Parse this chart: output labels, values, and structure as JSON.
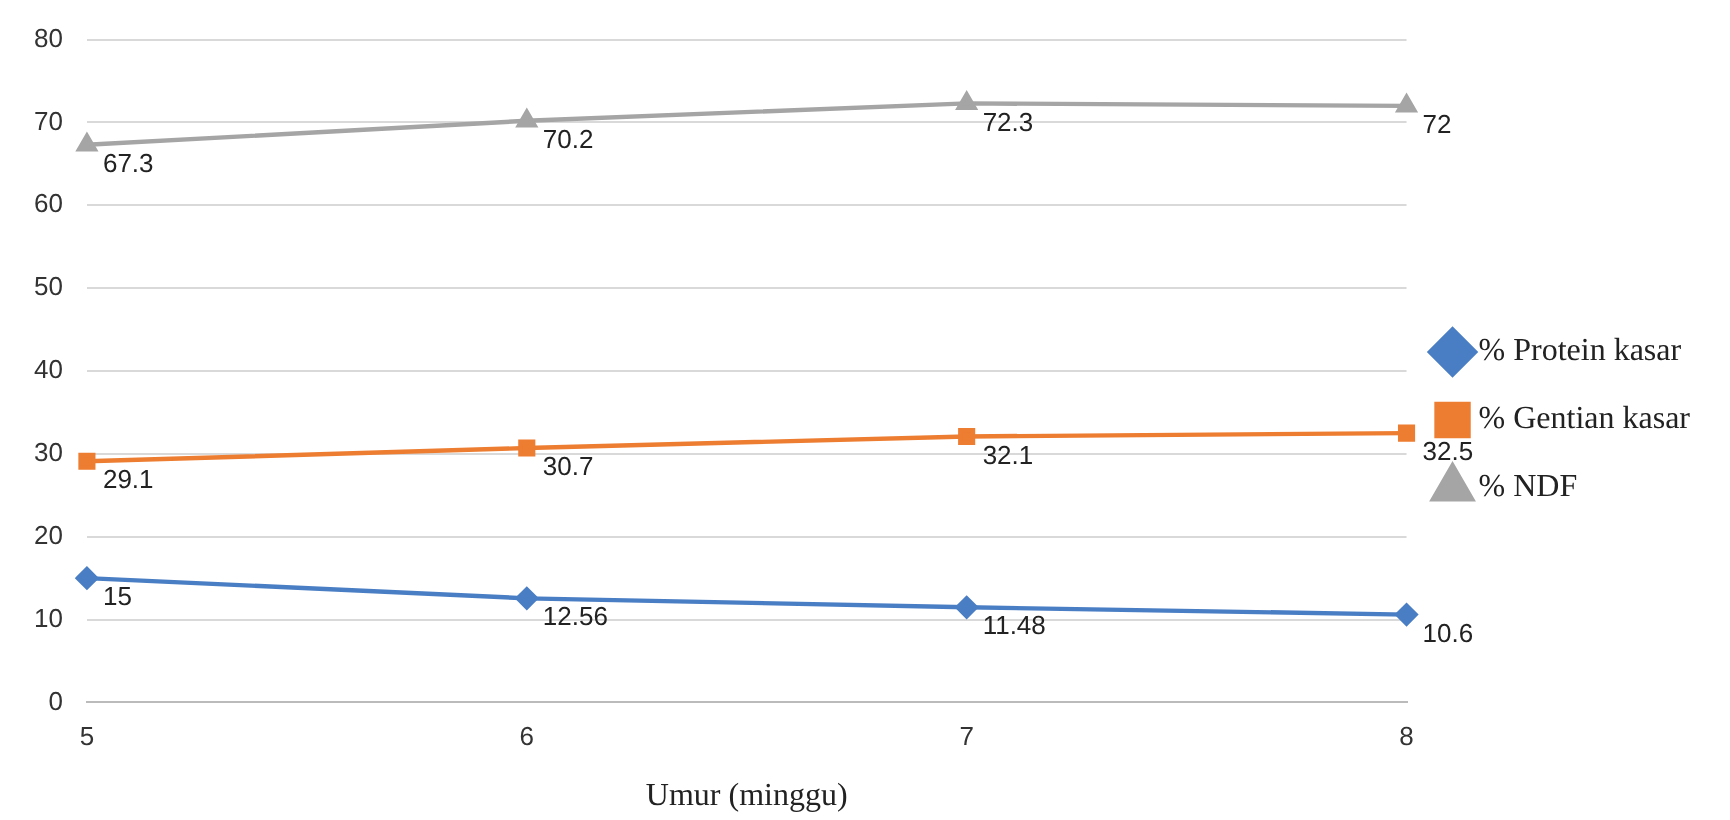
{
  "chart_data": {
    "type": "line",
    "xlabel": "Umur (minggu)",
    "categories": [
      "5",
      "6",
      "7",
      "8"
    ],
    "series": [
      {
        "name": "% Protein kasar",
        "color": "#4a7ec4",
        "marker": "diamond",
        "values": [
          15,
          12.56,
          11.48,
          10.6
        ]
      },
      {
        "name": "% Gentian kasar",
        "color": "#ed7d31",
        "marker": "square",
        "values": [
          29.1,
          30.7,
          32.1,
          32.5
        ]
      },
      {
        "name": "% NDF",
        "color": "#a5a5a5",
        "marker": "triangle",
        "values": [
          67.3,
          70.2,
          72.3,
          72
        ]
      }
    ],
    "ylim": [
      0,
      80
    ],
    "yticks": [
      0,
      10,
      20,
      30,
      40,
      50,
      60,
      70,
      80
    ],
    "grid": "y",
    "legend": "right",
    "data_labels": true,
    "line_style": "solid"
  }
}
